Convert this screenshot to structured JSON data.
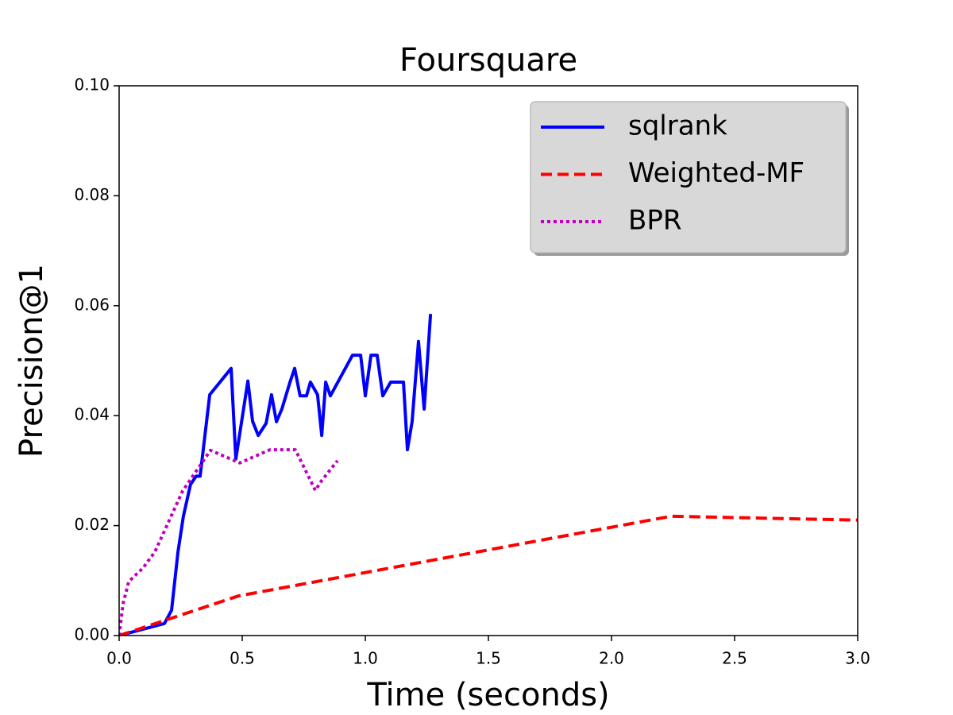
{
  "chart_data": {
    "type": "line",
    "title": "Foursquare",
    "xlabel": "Time (seconds)",
    "ylabel": "Precision@1",
    "xlim": [
      0,
      3
    ],
    "ylim": [
      0,
      0.1
    ],
    "xticks": [
      {
        "value": 0,
        "label": "0.0"
      },
      0.5,
      {
        "value": 1,
        "label": "1.0"
      },
      1.5,
      {
        "value": 2,
        "label": "2.0"
      },
      2.5,
      {
        "value": 3,
        "label": "3.0"
      }
    ],
    "yticks": [
      {
        "value": 0,
        "label": "0.00"
      },
      0.02,
      0.04,
      0.06,
      0.08,
      {
        "value": 0.1,
        "label": "0.10"
      }
    ],
    "legend": "upper right",
    "series": [
      {
        "name": "sqlrank",
        "color": "#0000ff",
        "linestyle": "solid",
        "x": [
          0,
          0.184,
          0.213,
          0.239,
          0.261,
          0.29,
          0.313,
          0.329,
          0.368,
          0.455,
          0.474,
          0.523,
          0.542,
          0.565,
          0.597,
          0.619,
          0.639,
          0.661,
          0.694,
          0.713,
          0.735,
          0.761,
          0.777,
          0.806,
          0.823,
          0.839,
          0.858,
          0.948,
          0.981,
          1.0,
          1.023,
          1.048,
          1.071,
          1.103,
          1.155,
          1.171,
          1.19,
          1.216,
          1.239,
          1.265
        ],
        "values": [
          0,
          0.0022,
          0.0046,
          0.0152,
          0.0217,
          0.0275,
          0.029,
          0.029,
          0.0438,
          0.0486,
          0.0321,
          0.0463,
          0.039,
          0.0364,
          0.0386,
          0.0438,
          0.0389,
          0.0412,
          0.0461,
          0.0486,
          0.0436,
          0.0436,
          0.0461,
          0.0438,
          0.0364,
          0.0461,
          0.0436,
          0.051,
          0.051,
          0.0436,
          0.051,
          0.051,
          0.0436,
          0.0461,
          0.0461,
          0.0338,
          0.0389,
          0.0535,
          0.0412,
          0.0585
        ]
      },
      {
        "name": "Weighted-MF",
        "color": "#ff0000",
        "linestyle": "dashed",
        "x": [
          0,
          0.484,
          2.242,
          3.0
        ],
        "values": [
          0,
          0.0072,
          0.0217,
          0.021
        ]
      },
      {
        "name": "BPR",
        "color": "#bf00bf",
        "linestyle": "dotted",
        "x": [
          0,
          0.016,
          0.039,
          0.097,
          0.145,
          0.258,
          0.371,
          0.49,
          0.613,
          0.716,
          0.797,
          0.823,
          0.887
        ],
        "values": [
          0,
          0.0058,
          0.0098,
          0.0123,
          0.0152,
          0.0263,
          0.0337,
          0.0314,
          0.0338,
          0.0338,
          0.0264,
          0.0282,
          0.0318
        ]
      }
    ]
  }
}
